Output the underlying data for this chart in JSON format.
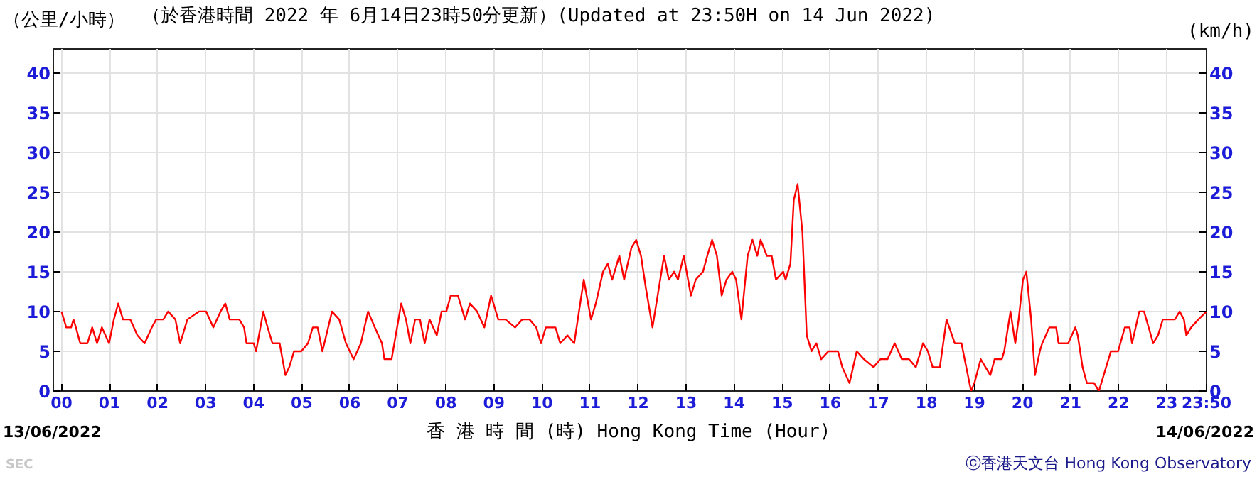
{
  "chart_data": {
    "type": "line",
    "title": "（於香港時間 2022 年 6月14日23時50分更新）(Updated at 23:50H on 14 Jun 2022)",
    "xlabel": "香 港 時 間 (時)  Hong Kong Time (Hour)",
    "ylabel": "（公里/小時）",
    "y2label": "(km/h)",
    "annotations": [
      "13/06/2022",
      "14/06/2022",
      "ⓒ香港天文台 Hong Kong Observatory",
      "SEC"
    ],
    "x": [
      0,
      0.1,
      0.2,
      0.25,
      0.3,
      0.39,
      0.54,
      0.64,
      0.74,
      0.84,
      0.99,
      1.09,
      1.18,
      1.28,
      1.43,
      1.58,
      1.73,
      1.88,
      1.97,
      2.12,
      2.22,
      2.37,
      2.47,
      2.62,
      2.86,
      3.01,
      3.16,
      3.31,
      3.41,
      3.5,
      3.7,
      3.8,
      3.85,
      4.0,
      4.05,
      4.2,
      4.29,
      4.39,
      4.54,
      4.66,
      4.74,
      4.84,
      4.99,
      5.13,
      5.23,
      5.33,
      5.43,
      5.63,
      5.78,
      5.92,
      6.08,
      6.23,
      6.38,
      6.52,
      6.67,
      6.72,
      6.87,
      7.07,
      7.17,
      7.26,
      7.36,
      7.46,
      7.56,
      7.66,
      7.81,
      7.91,
      8.01,
      8.1,
      8.25,
      8.4,
      8.5,
      8.65,
      8.8,
      8.94,
      9.09,
      9.24,
      9.44,
      9.59,
      9.74,
      9.88,
      9.98,
      10.08,
      10.28,
      10.38,
      10.53,
      10.67,
      10.77,
      10.87,
      11.02,
      11.12,
      11.27,
      11.37,
      11.46,
      11.61,
      11.71,
      11.86,
      11.96,
      12.06,
      12.16,
      12.3,
      12.46,
      12.54,
      12.64,
      12.75,
      12.83,
      12.95,
      13.1,
      13.2,
      13.35,
      13.44,
      13.54,
      13.64,
      13.74,
      13.84,
      13.96,
      14.04,
      14.15,
      14.28,
      14.38,
      14.48,
      14.55,
      14.68,
      14.78,
      14.87,
      15.02,
      15.07,
      15.17,
      15.24,
      15.32,
      15.42,
      15.51,
      15.61,
      15.71,
      15.81,
      15.96,
      16.16,
      16.25,
      16.4,
      16.55,
      16.7,
      16.9,
      17.04,
      17.19,
      17.34,
      17.49,
      17.64,
      17.78,
      17.93,
      18.03,
      18.13,
      18.28,
      18.42,
      18.59,
      18.73,
      18.83,
      18.93,
      19.0,
      19.13,
      19.23,
      19.33,
      19.42,
      19.57,
      19.62,
      19.75,
      19.85,
      19.92,
      20.01,
      20.08,
      20.18,
      20.26,
      20.36,
      20.41,
      20.56,
      20.7,
      20.75,
      20.95,
      21.1,
      21.15,
      21.25,
      21.34,
      21.49,
      21.59,
      21.74,
      21.84,
      21.99,
      22.13,
      22.23,
      22.28,
      22.43,
      22.53,
      22.72,
      22.82,
      22.92,
      23.17,
      23.27,
      23.36,
      23.41,
      23.51,
      23.66,
      23.83
    ],
    "series": [
      {
        "color": "#ff0000",
        "values": [
          10,
          8,
          8,
          9,
          8,
          6,
          6,
          8,
          6,
          8,
          6,
          9,
          11,
          9,
          9,
          7,
          6,
          8,
          9,
          9,
          10,
          9,
          6,
          9,
          10,
          10,
          8,
          10,
          11,
          9,
          9,
          8,
          6,
          6,
          5,
          10,
          8,
          6,
          6,
          2,
          3,
          5,
          5,
          6,
          8,
          8,
          5,
          10,
          9,
          6,
          4,
          6,
          10,
          8,
          6,
          4,
          4,
          11,
          9,
          6,
          9,
          9,
          6,
          9,
          7,
          10,
          10,
          12,
          12,
          9,
          11,
          10,
          8,
          12,
          9,
          9,
          8,
          9,
          9,
          8,
          6,
          8,
          8,
          6,
          7,
          6,
          10,
          14,
          9,
          11,
          15,
          16,
          14,
          17,
          14,
          18,
          19,
          17,
          13,
          8,
          14,
          17,
          14,
          15,
          14,
          17,
          12,
          14,
          15,
          17,
          19,
          17,
          12,
          14,
          15,
          14,
          9,
          17,
          19,
          17,
          19,
          17,
          17,
          14,
          15,
          14,
          16,
          24,
          26,
          20,
          7,
          5,
          6,
          4,
          5,
          5,
          3,
          1,
          5,
          4,
          3,
          4,
          4,
          6,
          4,
          4,
          3,
          6,
          5,
          3,
          3,
          9,
          6,
          6,
          3,
          0,
          1,
          4,
          3,
          2,
          4,
          4,
          5,
          10,
          6,
          9,
          14,
          15,
          9,
          2,
          5,
          6,
          8,
          8,
          6,
          6,
          8,
          7,
          3,
          1,
          1,
          0,
          3,
          5,
          5,
          8,
          8,
          6,
          10,
          10,
          6,
          7,
          9,
          9,
          10,
          9,
          7,
          8,
          9,
          10
        ]
      }
    ],
    "xlim": [
      -0.17,
      23.83
    ],
    "ylim": [
      0,
      43
    ],
    "y2lim": [
      0,
      43
    ],
    "xticks": [
      {
        "value": 0,
        "label": "00"
      },
      {
        "value": 1,
        "label": "01"
      },
      {
        "value": 2,
        "label": "02"
      },
      {
        "value": 3,
        "label": "03"
      },
      {
        "value": 4,
        "label": "04"
      },
      {
        "value": 5,
        "label": "05"
      },
      {
        "value": 6,
        "label": "06"
      },
      {
        "value": 7,
        "label": "07"
      },
      {
        "value": 8,
        "label": "08"
      },
      {
        "value": 9,
        "label": "09"
      },
      {
        "value": 10,
        "label": "10"
      },
      {
        "value": 11,
        "label": "11"
      },
      {
        "value": 12,
        "label": "12"
      },
      {
        "value": 13,
        "label": "13"
      },
      {
        "value": 14,
        "label": "14"
      },
      {
        "value": 15,
        "label": "15"
      },
      {
        "value": 16,
        "label": "16"
      },
      {
        "value": 17,
        "label": "17"
      },
      {
        "value": 18,
        "label": "18"
      },
      {
        "value": 19,
        "label": "19"
      },
      {
        "value": 20,
        "label": "20"
      },
      {
        "value": 21,
        "label": "21"
      },
      {
        "value": 22,
        "label": "22"
      },
      {
        "value": 23,
        "label": "23"
      },
      {
        "value": 23.83,
        "label": "23:50"
      }
    ],
    "yticks": [
      0,
      5,
      10,
      15,
      20,
      25,
      30,
      35,
      40
    ],
    "y2ticks": [
      0,
      5,
      10,
      15,
      20,
      25,
      30,
      35,
      40
    ],
    "grid": true,
    "line_style": "solid"
  }
}
